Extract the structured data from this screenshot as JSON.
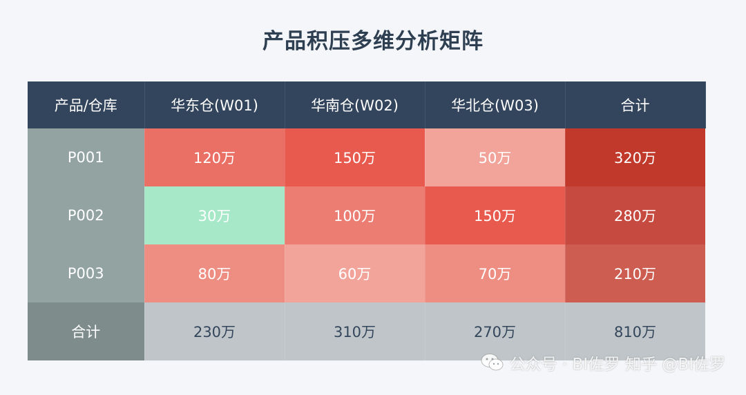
{
  "title": "产品积压多维分析矩阵",
  "chart_data": {
    "type": "heatmap",
    "title": "产品积压多维分析矩阵",
    "corner_label": "产品/仓库",
    "columns": [
      "华东仓(W01)",
      "华南仓(W02)",
      "华北仓(W03)",
      "合计"
    ],
    "rows": [
      "P001",
      "P002",
      "P003",
      "合计"
    ],
    "values": [
      [
        120,
        150,
        50,
        320
      ],
      [
        30,
        100,
        150,
        280
      ],
      [
        80,
        60,
        70,
        210
      ],
      [
        230,
        310,
        270,
        810
      ]
    ],
    "value_labels": [
      [
        "120万",
        "150万",
        "50万",
        "320万"
      ],
      [
        "30万",
        "100万",
        "150万",
        "280万"
      ],
      [
        "80万",
        "60万",
        "70万",
        "210万"
      ],
      [
        "230万",
        "310万",
        "270万",
        "810万"
      ]
    ],
    "colors": {
      "header_bg": "#33455c",
      "row_label_bg": "#92a3a2",
      "total_row_label_bg": "#7e8c8b",
      "total_row_bg": "#bfc5c8",
      "low_value": "#a6e8c8",
      "warehouse_scale": [
        "#f2a49b",
        "#ee8e83",
        "#ec7d72",
        "#ea6f64",
        "#e85a4e"
      ],
      "total_scale": [
        "#cd5c51",
        "#c64a3f",
        "#c1392b"
      ]
    }
  },
  "watermark": {
    "icon": "wechat-icon",
    "text": "公众号 · BI佐罗",
    "text2": "知乎 @BI佐罗"
  }
}
